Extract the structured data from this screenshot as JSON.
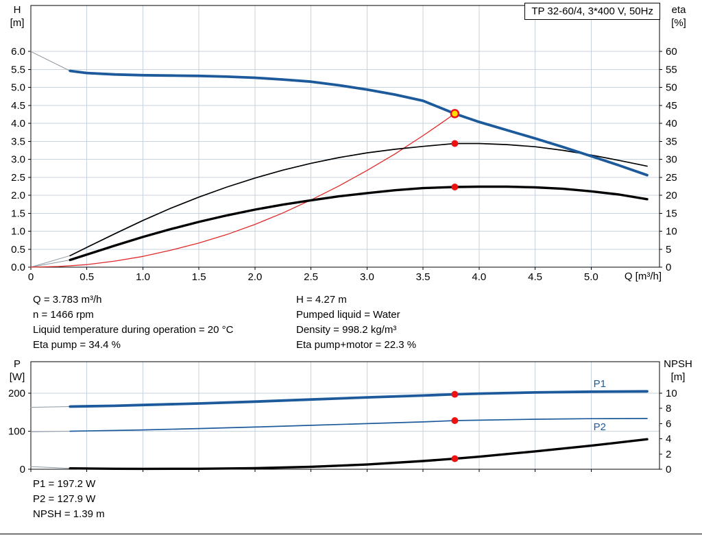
{
  "title_box": "TP 32-60/4, 3*400 V, 50Hz",
  "colors": {
    "grid": "#c7d3de",
    "axis": "#000000",
    "head_curve": "#1c5a9c",
    "eta_curve": "#000000",
    "system_curve": "#e02828",
    "duty_dot": "#ee1111",
    "op_point_fill": "#ffdd00",
    "lead_line": "#8a97a5"
  },
  "info_top_left": [
    "Q = 3.783 m³/h",
    "n = 1466 rpm",
    "Liquid temperature during operation = 20 °C",
    "Eta pump = 34.4 %"
  ],
  "info_top_right": [
    "H = 4.27 m",
    "Pumped liquid = Water",
    "Density = 998.2 kg/m³",
    "Eta pump+motor = 22.3 %"
  ],
  "info_bottom": [
    "P1 = 197.2 W",
    "P2 = 127.9 W",
    "NPSH = 1.39 m"
  ],
  "chart_data": [
    {
      "type": "line",
      "name": "head-and-efficiency-vs-flow",
      "title": "TP 32-60/4, 3*400 V, 50Hz",
      "show_x_tick_labels": true,
      "x_axis": {
        "label": "Q [m³/h]",
        "range": [
          0,
          5.61
        ],
        "ticks": [
          {
            "v": 0,
            "l": "0"
          },
          {
            "v": 0.5,
            "l": "0.5"
          },
          {
            "v": 1,
            "l": "1.0"
          },
          {
            "v": 1.5,
            "l": "1.5"
          },
          {
            "v": 2,
            "l": "2.0"
          },
          {
            "v": 2.5,
            "l": "2.5"
          },
          {
            "v": 3,
            "l": "3.0"
          },
          {
            "v": 3.5,
            "l": "3.5"
          },
          {
            "v": 4,
            "l": "4.0"
          },
          {
            "v": 4.5,
            "l": "4.5"
          },
          {
            "v": 5,
            "l": "5.0"
          }
        ]
      },
      "y_left": {
        "label_lines": [
          "H",
          "[m]"
        ],
        "range": [
          0,
          7.28
        ],
        "ticks": [
          {
            "v": 0,
            "l": "0.0"
          },
          {
            "v": 0.5,
            "l": "0.5"
          },
          {
            "v": 1,
            "l": "1.0"
          },
          {
            "v": 1.5,
            "l": "1.5"
          },
          {
            "v": 2,
            "l": "2.0"
          },
          {
            "v": 2.5,
            "l": "2.5"
          },
          {
            "v": 3,
            "l": "3.0"
          },
          {
            "v": 3.5,
            "l": "3.5"
          },
          {
            "v": 4,
            "l": "4.0"
          },
          {
            "v": 4.5,
            "l": "4.5"
          },
          {
            "v": 5,
            "l": "5.0"
          },
          {
            "v": 5.5,
            "l": "5.5"
          },
          {
            "v": 6,
            "l": "6.0"
          }
        ]
      },
      "y_right": {
        "label_lines": [
          "eta",
          "[%]"
        ],
        "range": [
          0,
          72.8
        ],
        "ticks": [
          {
            "v": 0,
            "l": "0"
          },
          {
            "v": 5,
            "l": "5"
          },
          {
            "v": 10,
            "l": "10"
          },
          {
            "v": 15,
            "l": "15"
          },
          {
            "v": 20,
            "l": "20"
          },
          {
            "v": 25,
            "l": "25"
          },
          {
            "v": 30,
            "l": "30"
          },
          {
            "v": 35,
            "l": "35"
          },
          {
            "v": 40,
            "l": "40"
          },
          {
            "v": 45,
            "l": "45"
          },
          {
            "v": 50,
            "l": "50"
          },
          {
            "v": 55,
            "l": "55"
          },
          {
            "v": 60,
            "l": "60"
          }
        ]
      },
      "series": [
        {
          "name": "head-lead",
          "axis": "left",
          "color": "#8a97a5",
          "width": 1,
          "points": [
            [
              0,
              6.0
            ],
            [
              0.35,
              5.46
            ]
          ]
        },
        {
          "name": "eta-pump-lead",
          "axis": "right",
          "color": "#8a97a5",
          "width": 1,
          "points": [
            [
              0,
              0
            ],
            [
              0.35,
              3.2
            ]
          ]
        },
        {
          "name": "eta-motor-lead",
          "axis": "right",
          "color": "#8a97a5",
          "width": 1,
          "points": [
            [
              0,
              0
            ],
            [
              0.35,
              2.0
            ]
          ]
        },
        {
          "name": "system-curve",
          "axis": "left",
          "color": "#e02828",
          "width": 1.3,
          "points": [
            [
              0,
              0
            ],
            [
              0.25,
              0.02
            ],
            [
              0.5,
              0.07
            ],
            [
              0.75,
              0.17
            ],
            [
              1,
              0.3
            ],
            [
              1.25,
              0.47
            ],
            [
              1.5,
              0.67
            ],
            [
              1.75,
              0.91
            ],
            [
              2,
              1.19
            ],
            [
              2.25,
              1.51
            ],
            [
              2.5,
              1.87
            ],
            [
              2.75,
              2.26
            ],
            [
              3,
              2.69
            ],
            [
              3.25,
              3.15
            ],
            [
              3.5,
              3.66
            ],
            [
              3.65,
              3.98
            ],
            [
              3.783,
              4.27
            ]
          ]
        },
        {
          "name": "eta-pump",
          "axis": "right",
          "color": "#000000",
          "width": 1.7,
          "points": [
            [
              0.35,
              3.2
            ],
            [
              0.5,
              5.5
            ],
            [
              0.75,
              9.3
            ],
            [
              1,
              13.0
            ],
            [
              1.25,
              16.4
            ],
            [
              1.5,
              19.5
            ],
            [
              1.75,
              22.3
            ],
            [
              2,
              24.8
            ],
            [
              2.25,
              27.0
            ],
            [
              2.5,
              28.9
            ],
            [
              2.75,
              30.5
            ],
            [
              3,
              31.8
            ],
            [
              3.25,
              32.8
            ],
            [
              3.5,
              33.6
            ],
            [
              3.783,
              34.4
            ],
            [
              4,
              34.4
            ],
            [
              4.25,
              34.1
            ],
            [
              4.5,
              33.5
            ],
            [
              4.75,
              32.5
            ],
            [
              5,
              31.2
            ],
            [
              5.25,
              29.7
            ],
            [
              5.5,
              28.1
            ]
          ]
        },
        {
          "name": "eta-pump-motor",
          "axis": "right",
          "color": "#000000",
          "width": 3.4,
          "points": [
            [
              0.35,
              2.0
            ],
            [
              0.5,
              3.5
            ],
            [
              0.75,
              6.0
            ],
            [
              1,
              8.4
            ],
            [
              1.25,
              10.6
            ],
            [
              1.5,
              12.6
            ],
            [
              1.75,
              14.4
            ],
            [
              2,
              16.0
            ],
            [
              2.25,
              17.4
            ],
            [
              2.5,
              18.6
            ],
            [
              2.75,
              19.7
            ],
            [
              3,
              20.6
            ],
            [
              3.25,
              21.4
            ],
            [
              3.5,
              22.0
            ],
            [
              3.783,
              22.3
            ],
            [
              4,
              22.4
            ],
            [
              4.25,
              22.4
            ],
            [
              4.5,
              22.2
            ],
            [
              4.75,
              21.8
            ],
            [
              5,
              21.1
            ],
            [
              5.25,
              20.2
            ],
            [
              5.5,
              18.9
            ]
          ]
        },
        {
          "name": "head-curve",
          "axis": "left",
          "color": "#1c5a9c",
          "width": 3.8,
          "points": [
            [
              0.35,
              5.46
            ],
            [
              0.5,
              5.4
            ],
            [
              0.75,
              5.36
            ],
            [
              1,
              5.34
            ],
            [
              1.25,
              5.33
            ],
            [
              1.5,
              5.32
            ],
            [
              1.75,
              5.3
            ],
            [
              2,
              5.27
            ],
            [
              2.25,
              5.22
            ],
            [
              2.5,
              5.16
            ],
            [
              2.75,
              5.06
            ],
            [
              3,
              4.94
            ],
            [
              3.25,
              4.8
            ],
            [
              3.5,
              4.63
            ],
            [
              3.783,
              4.27
            ],
            [
              4,
              4.04
            ],
            [
              4.25,
              3.81
            ],
            [
              4.5,
              3.58
            ],
            [
              4.75,
              3.34
            ],
            [
              5,
              3.09
            ],
            [
              5.25,
              2.83
            ],
            [
              5.5,
              2.56
            ]
          ]
        }
      ],
      "markers": [
        {
          "name": "duty-point-eta-pump",
          "x": 3.783,
          "y": 34.4,
          "axis": "right",
          "r": 5,
          "fill": "#ee1111"
        },
        {
          "name": "duty-point-eta-pump-motor",
          "x": 3.783,
          "y": 22.3,
          "axis": "right",
          "r": 5,
          "fill": "#ee1111"
        },
        {
          "name": "operating-point",
          "x": 3.783,
          "y": 4.27,
          "axis": "left",
          "r": 5.5,
          "fill": "#ffdd00",
          "stroke": "#ee1111",
          "stroke_width": 2.5
        }
      ],
      "annotations": []
    },
    {
      "type": "line",
      "name": "power-and-npsh-vs-flow",
      "show_x_tick_labels": false,
      "x_axis": {
        "label": "",
        "range": [
          0,
          5.61
        ],
        "ticks": [
          {
            "v": 0,
            "l": "0"
          },
          {
            "v": 0.5,
            "l": "0.5"
          },
          {
            "v": 1,
            "l": "1.0"
          },
          {
            "v": 1.5,
            "l": "1.5"
          },
          {
            "v": 2,
            "l": "2.0"
          },
          {
            "v": 2.5,
            "l": "2.5"
          },
          {
            "v": 3,
            "l": "3.0"
          },
          {
            "v": 3.5,
            "l": "3.5"
          },
          {
            "v": 4,
            "l": "4.0"
          },
          {
            "v": 4.5,
            "l": "4.5"
          },
          {
            "v": 5,
            "l": "5.0"
          }
        ]
      },
      "y_left": {
        "label_lines": [
          "P",
          "[W]"
        ],
        "range": [
          0,
          283
        ],
        "ticks": [
          {
            "v": 0,
            "l": "0"
          },
          {
            "v": 100,
            "l": "100"
          },
          {
            "v": 200,
            "l": "200"
          }
        ]
      },
      "y_right": {
        "label_lines": [
          "NPSH",
          "[m]"
        ],
        "range": [
          0,
          14.15
        ],
        "ticks": [
          {
            "v": 0,
            "l": "0"
          },
          {
            "v": 2,
            "l": "2"
          },
          {
            "v": 4,
            "l": "4"
          },
          {
            "v": 6,
            "l": "6"
          },
          {
            "v": 8,
            "l": "8"
          },
          {
            "v": 10,
            "l": "10"
          }
        ]
      },
      "series": [
        {
          "name": "p1-lead",
          "axis": "left",
          "color": "#8a97a5",
          "width": 1,
          "points": [
            [
              0,
              163
            ],
            [
              0.35,
              165
            ]
          ]
        },
        {
          "name": "p2-lead",
          "axis": "left",
          "color": "#8a97a5",
          "width": 1,
          "points": [
            [
              0,
              98.5
            ],
            [
              0.35,
              100
            ]
          ]
        },
        {
          "name": "npsh-lead",
          "axis": "right",
          "color": "#8a97a5",
          "width": 1,
          "points": [
            [
              0,
              0.35
            ],
            [
              0.35,
              0.12
            ]
          ]
        },
        {
          "name": "p2-curve",
          "axis": "left",
          "color": "#1c5a9c",
          "width": 1.7,
          "points": [
            [
              0.35,
              100
            ],
            [
              0.75,
              102
            ],
            [
              1,
              103.5
            ],
            [
              1.5,
              107
            ],
            [
              2,
              111
            ],
            [
              2.5,
              115.5
            ],
            [
              3,
              120
            ],
            [
              3.5,
              124.5
            ],
            [
              3.783,
              127.9
            ],
            [
              4,
              129
            ],
            [
              4.5,
              131.5
            ],
            [
              5,
              133
            ],
            [
              5.5,
              133.5
            ]
          ]
        },
        {
          "name": "p1-curve",
          "axis": "left",
          "color": "#1c5a9c",
          "width": 3.8,
          "points": [
            [
              0.35,
              165
            ],
            [
              0.75,
              167
            ],
            [
              1,
              169
            ],
            [
              1.5,
              173
            ],
            [
              2,
              178
            ],
            [
              2.5,
              183.5
            ],
            [
              3,
              189
            ],
            [
              3.5,
              194
            ],
            [
              3.783,
              197.2
            ],
            [
              4,
              199
            ],
            [
              4.5,
              202
            ],
            [
              5,
              204
            ],
            [
              5.5,
              205
            ]
          ]
        },
        {
          "name": "npsh-curve",
          "axis": "right",
          "color": "#000000",
          "width": 3.4,
          "points": [
            [
              0.35,
              0.12
            ],
            [
              0.75,
              0.06
            ],
            [
              1,
              0.05
            ],
            [
              1.5,
              0.06
            ],
            [
              2,
              0.14
            ],
            [
              2.5,
              0.32
            ],
            [
              3,
              0.62
            ],
            [
              3.5,
              1.08
            ],
            [
              3.783,
              1.39
            ],
            [
              4,
              1.65
            ],
            [
              4.5,
              2.35
            ],
            [
              5,
              3.1
            ],
            [
              5.5,
              3.95
            ]
          ]
        }
      ],
      "markers": [
        {
          "name": "duty-point-p1",
          "x": 3.783,
          "y": 197.2,
          "axis": "left",
          "r": 5,
          "fill": "#ee1111"
        },
        {
          "name": "duty-point-p2",
          "x": 3.783,
          "y": 127.9,
          "axis": "left",
          "r": 5,
          "fill": "#ee1111"
        },
        {
          "name": "duty-point-npsh",
          "x": 3.783,
          "y": 1.39,
          "axis": "right",
          "r": 5,
          "fill": "#ee1111"
        }
      ],
      "annotations": [
        {
          "name": "p1-label",
          "text": "P1",
          "x": 5.02,
          "y": 216,
          "axis": "left",
          "color": "#1c5a9c"
        },
        {
          "name": "p2-label",
          "text": "P2",
          "x": 5.02,
          "y": 103,
          "axis": "left",
          "color": "#1c5a9c"
        }
      ]
    }
  ]
}
